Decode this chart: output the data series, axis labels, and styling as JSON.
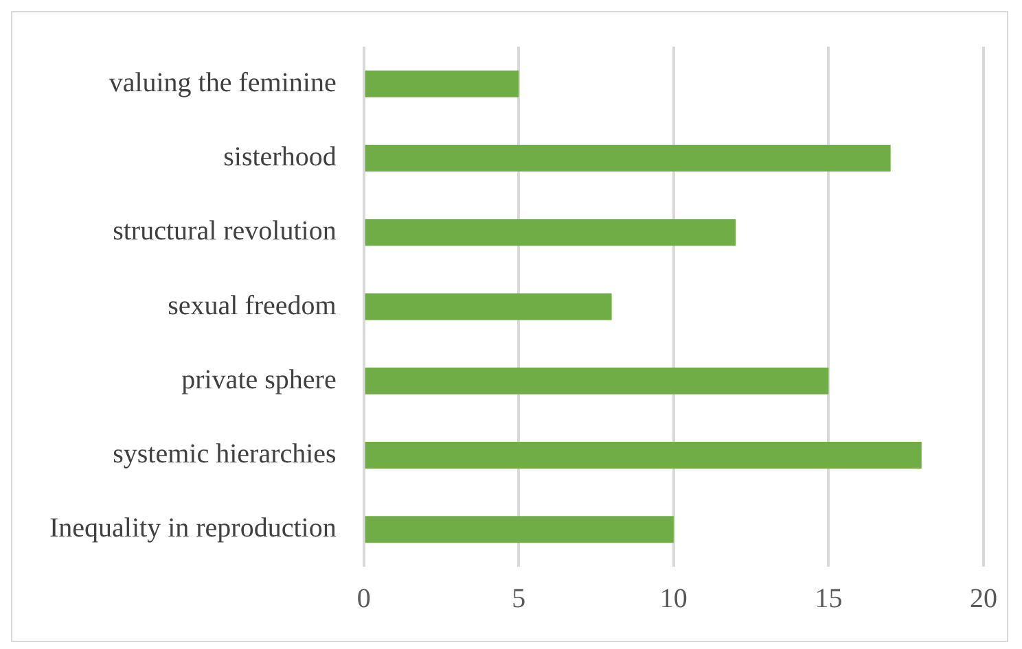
{
  "chart_data": {
    "type": "bar",
    "orientation": "horizontal",
    "categories": [
      "valuing the feminine",
      "sisterhood",
      "structural revolution",
      "sexual freedom",
      "private sphere",
      "systemic hierarchies",
      "Inequality in reproduction"
    ],
    "values": [
      5,
      17,
      12,
      8,
      15,
      18,
      10
    ],
    "color": "#70ad47",
    "xlim": [
      0,
      20
    ],
    "xticks": [
      0,
      5,
      10,
      15,
      20
    ],
    "grid": "x"
  }
}
